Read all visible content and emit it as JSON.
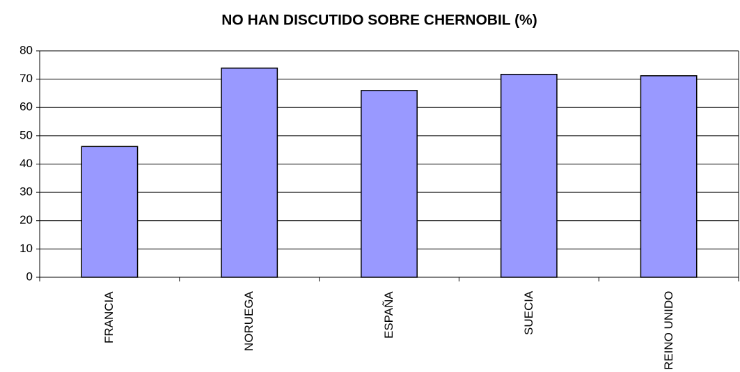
{
  "chart_data": {
    "type": "bar",
    "title": "NO HAN DISCUTIDO SOBRE CHERNOBIL (%)",
    "categories": [
      "FRANCIA",
      "NORUEGA",
      "ESPAÑA",
      "SUECIA",
      "REINO UNIDO"
    ],
    "values": [
      46.2,
      73.9,
      66,
      71.7,
      71.2
    ],
    "color": "#9999ff",
    "ylim": [
      0,
      80
    ],
    "yticks": [
      0,
      10,
      20,
      30,
      40,
      50,
      60,
      70,
      80
    ],
    "grid": true
  }
}
